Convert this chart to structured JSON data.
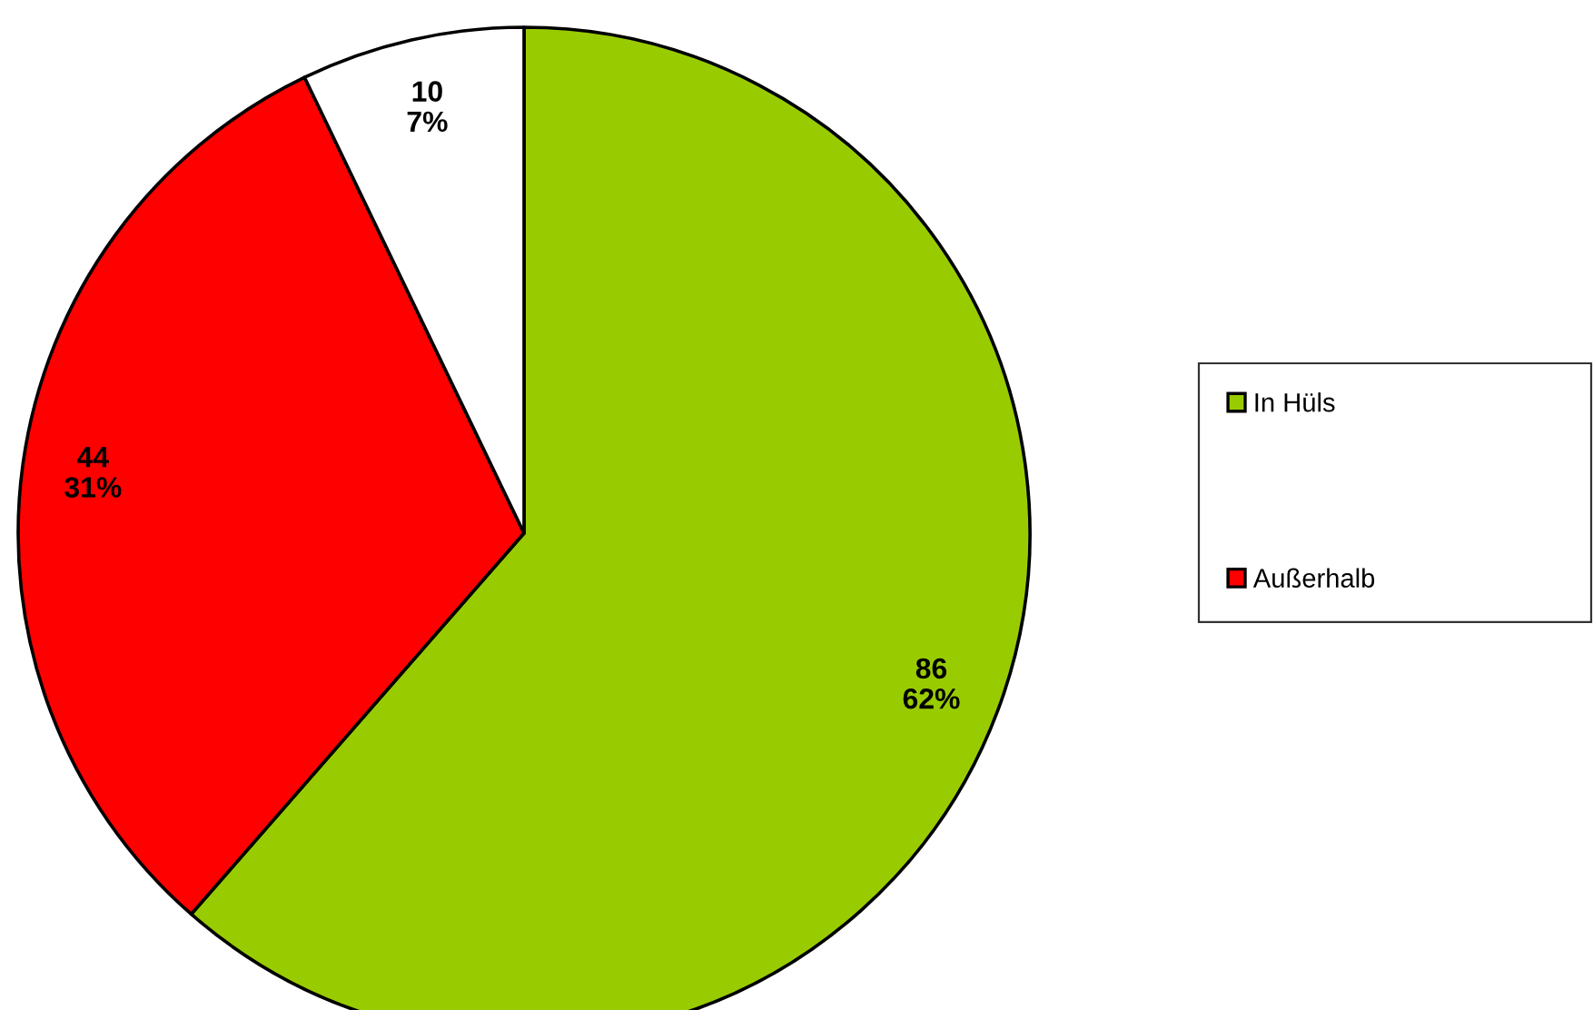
{
  "chart_data": {
    "type": "pie",
    "categories": [
      "In Hüls",
      "Außerhalb",
      null
    ],
    "values": [
      86,
      44,
      10
    ],
    "colors": [
      "#99cc00",
      "#ff0000",
      "#ffffff"
    ],
    "value_labels": [
      "86\n62%",
      "44\n31%",
      "10\n7%"
    ],
    "legend": "right"
  }
}
